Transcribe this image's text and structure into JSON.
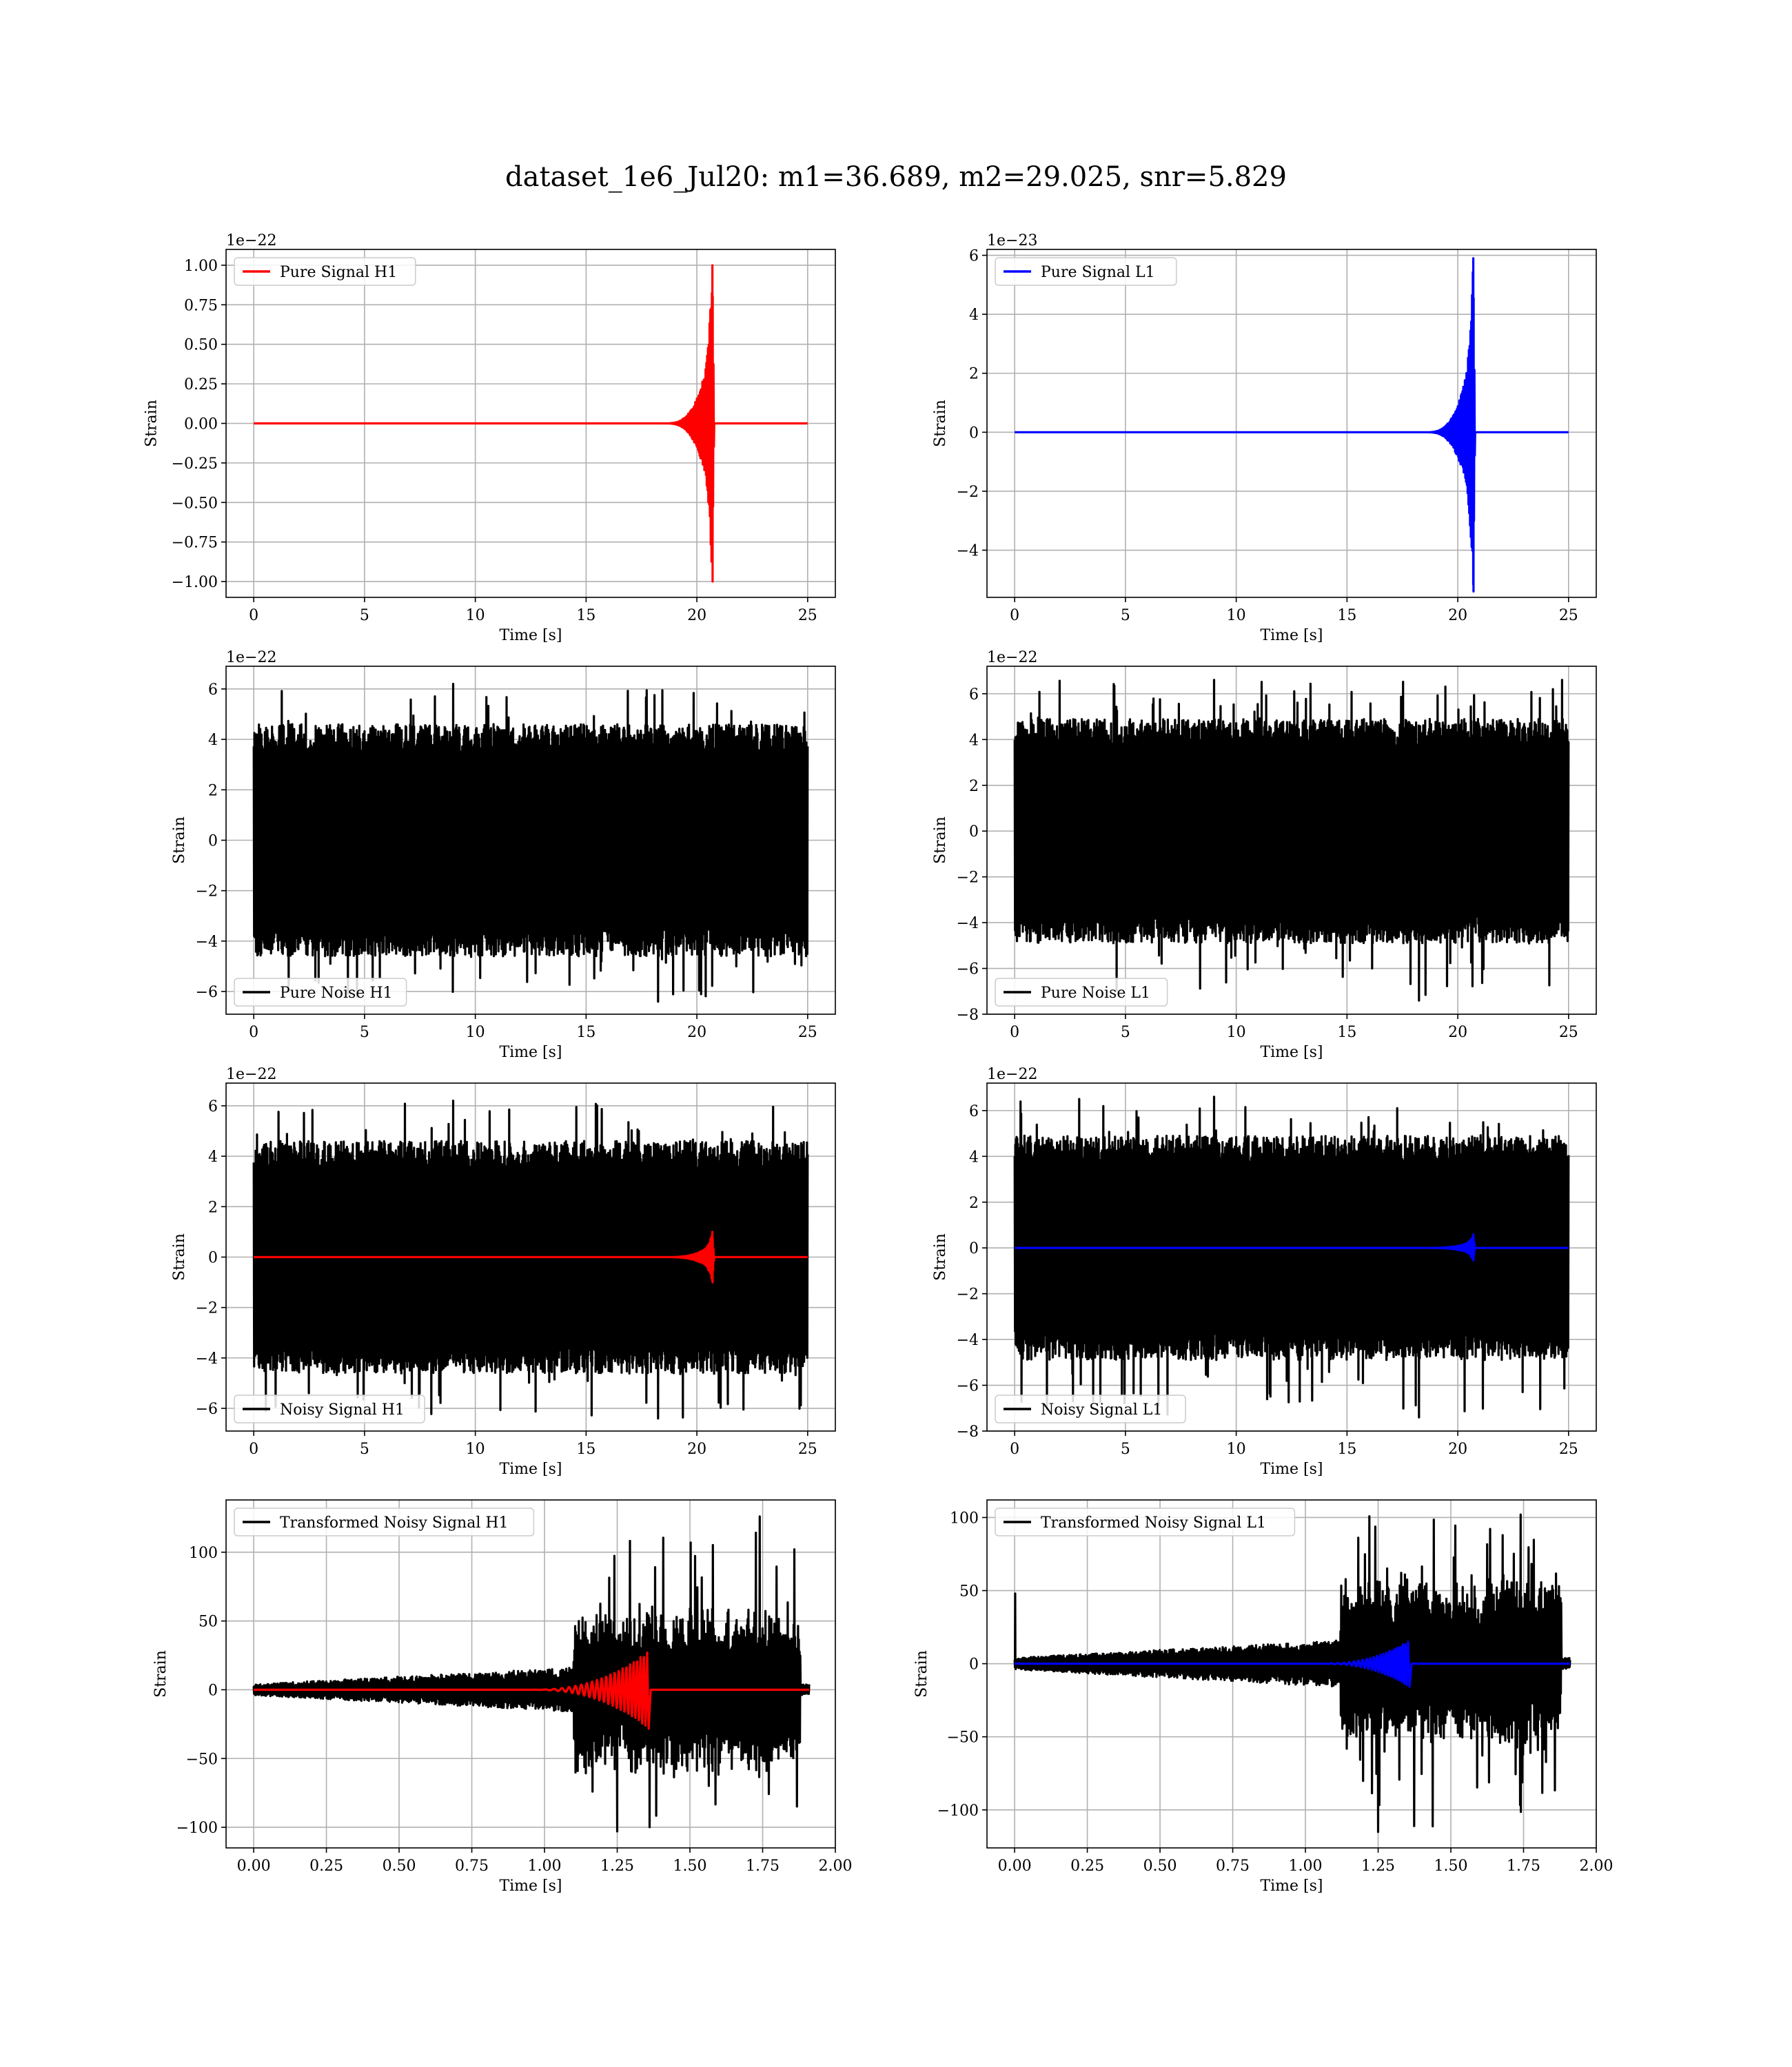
{
  "figure": {
    "title": "dataset_1e6_Jul20: m1=36.689, m2=29.025, snr=5.829"
  },
  "colors": {
    "signal_h1": "#ff0000",
    "signal_l1": "#0000ff",
    "noise": "#000000",
    "grid": "#b0b0b0"
  },
  "chart_data": [
    {
      "id": "pure_h1",
      "type": "line",
      "title": "",
      "xlabel": "Time [s]",
      "ylabel": "Strain",
      "offset_label": "1e−22",
      "xlim": [
        -1.25,
        26.25
      ],
      "ylim": [
        -1.1,
        1.1
      ],
      "xticks": [
        0,
        5,
        10,
        15,
        20,
        25
      ],
      "xtick_labels": [
        "0",
        "5",
        "10",
        "15",
        "20",
        "25"
      ],
      "yticks": [
        -1.0,
        -0.75,
        -0.5,
        -0.25,
        0.0,
        0.25,
        0.5,
        0.75,
        1.0
      ],
      "ytick_labels": [
        "−1.00",
        "−0.75",
        "−0.50",
        "−0.25",
        "0.00",
        "0.25",
        "0.50",
        "0.75",
        "1.00"
      ],
      "grid": true,
      "legend_placement": "upper left",
      "series": [
        {
          "name": "Pure Signal H1",
          "color": "#ff0000",
          "kind": "chirp",
          "x_start": 0,
          "x_end": 25,
          "t_merge": 20.7,
          "peak_pos": 1.0,
          "peak_neg": -1.0,
          "onset": 18.5
        }
      ]
    },
    {
      "id": "pure_l1",
      "type": "line",
      "title": "",
      "xlabel": "Time [s]",
      "ylabel": "Strain",
      "offset_label": "1e−23",
      "xlim": [
        -1.25,
        26.25
      ],
      "ylim": [
        -5.6,
        6.2
      ],
      "xticks": [
        0,
        5,
        10,
        15,
        20,
        25
      ],
      "xtick_labels": [
        "0",
        "5",
        "10",
        "15",
        "20",
        "25"
      ],
      "yticks": [
        -4,
        -2,
        0,
        2,
        4,
        6
      ],
      "ytick_labels": [
        "−4",
        "−2",
        "0",
        "2",
        "4",
        "6"
      ],
      "grid": true,
      "legend_placement": "upper left",
      "series": [
        {
          "name": "Pure Signal L1",
          "color": "#0000ff",
          "kind": "chirp",
          "x_start": 0,
          "x_end": 25,
          "t_merge": 20.7,
          "peak_pos": 5.9,
          "peak_neg": -5.4,
          "onset": 18.5
        }
      ]
    },
    {
      "id": "noise_h1",
      "type": "line",
      "title": "",
      "xlabel": "Time [s]",
      "ylabel": "Strain",
      "offset_label": "1e−22",
      "xlim": [
        -1.25,
        26.25
      ],
      "ylim": [
        -6.9,
        6.9
      ],
      "xticks": [
        0,
        5,
        10,
        15,
        20,
        25
      ],
      "xtick_labels": [
        "0",
        "5",
        "10",
        "15",
        "20",
        "25"
      ],
      "yticks": [
        -6,
        -4,
        -2,
        0,
        2,
        4,
        6
      ],
      "ytick_labels": [
        "−6",
        "−4",
        "−2",
        "0",
        "2",
        "4",
        "6"
      ],
      "grid": true,
      "legend_placement": "lower left",
      "series": [
        {
          "name": "Pure Noise H1",
          "color": "#000000",
          "kind": "noise",
          "x_start": 0,
          "x_end": 25,
          "max": 6.2,
          "min": -6.4
        }
      ]
    },
    {
      "id": "noise_l1",
      "type": "line",
      "title": "",
      "xlabel": "Time [s]",
      "ylabel": "Strain",
      "offset_label": "1e−22",
      "xlim": [
        -1.25,
        26.25
      ],
      "ylim": [
        -8.0,
        7.2
      ],
      "xticks": [
        0,
        5,
        10,
        15,
        20,
        25
      ],
      "xtick_labels": [
        "0",
        "5",
        "10",
        "15",
        "20",
        "25"
      ],
      "yticks": [
        -8,
        -6,
        -4,
        -2,
        0,
        2,
        4,
        6
      ],
      "ytick_labels": [
        "−8",
        "−6",
        "−4",
        "−2",
        "0",
        "2",
        "4",
        "6"
      ],
      "grid": true,
      "legend_placement": "lower left",
      "series": [
        {
          "name": "Pure Noise L1",
          "color": "#000000",
          "kind": "noise",
          "x_start": 0,
          "x_end": 25,
          "max": 6.6,
          "min": -7.4
        }
      ]
    },
    {
      "id": "noisy_h1",
      "type": "line",
      "title": "",
      "xlabel": "Time [s]",
      "ylabel": "Strain",
      "offset_label": "1e−22",
      "xlim": [
        -1.25,
        26.25
      ],
      "ylim": [
        -6.9,
        6.9
      ],
      "xticks": [
        0,
        5,
        10,
        15,
        20,
        25
      ],
      "xtick_labels": [
        "0",
        "5",
        "10",
        "15",
        "20",
        "25"
      ],
      "yticks": [
        -6,
        -4,
        -2,
        0,
        2,
        4,
        6
      ],
      "ytick_labels": [
        "−6",
        "−4",
        "−2",
        "0",
        "2",
        "4",
        "6"
      ],
      "grid": true,
      "legend_placement": "lower left",
      "series": [
        {
          "name": "Noisy Signal H1",
          "color": "#000000",
          "kind": "noise",
          "x_start": 0,
          "x_end": 25,
          "max": 6.2,
          "min": -6.4
        },
        {
          "name": "",
          "color": "#ff0000",
          "kind": "chirp",
          "x_start": 0,
          "x_end": 25,
          "t_merge": 20.7,
          "peak_pos": 1.0,
          "peak_neg": -1.0,
          "onset": 18.5
        }
      ]
    },
    {
      "id": "noisy_l1",
      "type": "line",
      "title": "",
      "xlabel": "Time [s]",
      "ylabel": "Strain",
      "offset_label": "1e−22",
      "xlim": [
        -1.25,
        26.25
      ],
      "ylim": [
        -8.0,
        7.2
      ],
      "xticks": [
        0,
        5,
        10,
        15,
        20,
        25
      ],
      "xtick_labels": [
        "0",
        "5",
        "10",
        "15",
        "20",
        "25"
      ],
      "yticks": [
        -8,
        -6,
        -4,
        -2,
        0,
        2,
        4,
        6
      ],
      "ytick_labels": [
        "−8",
        "−6",
        "−4",
        "−2",
        "0",
        "2",
        "4",
        "6"
      ],
      "grid": true,
      "legend_placement": "lower left",
      "series": [
        {
          "name": "Noisy Signal L1",
          "color": "#000000",
          "kind": "noise",
          "x_start": 0,
          "x_end": 25,
          "max": 6.6,
          "min": -7.4
        },
        {
          "name": "",
          "color": "#0000ff",
          "kind": "chirp",
          "x_start": 0,
          "x_end": 25,
          "t_merge": 20.7,
          "peak_pos": 0.59,
          "peak_neg": -0.54,
          "onset": 18.5
        }
      ]
    },
    {
      "id": "trans_h1",
      "type": "line",
      "title": "",
      "xlabel": "Time [s]",
      "ylabel": "Strain",
      "offset_label": "",
      "xlim": [
        -0.095,
        2.0
      ],
      "ylim": [
        -115,
        138
      ],
      "xticks": [
        0.0,
        0.25,
        0.5,
        0.75,
        1.0,
        1.25,
        1.5,
        1.75,
        2.0
      ],
      "xtick_labels": [
        "0.00",
        "0.25",
        "0.50",
        "0.75",
        "1.00",
        "1.25",
        "1.50",
        "1.75",
        "2.00"
      ],
      "yticks": [
        -100,
        -50,
        0,
        50,
        100
      ],
      "ytick_labels": [
        "−100",
        "−50",
        "0",
        "50",
        "100"
      ],
      "grid": true,
      "legend_placement": "upper left",
      "series": [
        {
          "name": "Transformed Noisy Signal H1",
          "color": "#000000",
          "kind": "tnoise",
          "x_start": 0,
          "x_end": 1.91,
          "max": 126,
          "min": -103,
          "burst_start": 1.1,
          "burst_end": 1.88
        },
        {
          "name": "",
          "color": "#ff0000",
          "kind": "tchirp",
          "x_start": 0,
          "x_end": 1.91,
          "t_merge": 1.35,
          "peak": 27,
          "onset": 0.95
        }
      ]
    },
    {
      "id": "trans_l1",
      "type": "line",
      "title": "",
      "xlabel": "Time [s]",
      "ylabel": "Strain",
      "offset_label": "",
      "xlim": [
        -0.095,
        2.0
      ],
      "ylim": [
        -126,
        112
      ],
      "xticks": [
        0.0,
        0.25,
        0.5,
        0.75,
        1.0,
        1.25,
        1.5,
        1.75,
        2.0
      ],
      "xtick_labels": [
        "0.00",
        "0.25",
        "0.50",
        "0.75",
        "1.00",
        "1.25",
        "1.50",
        "1.75",
        "2.00"
      ],
      "yticks": [
        -100,
        -50,
        0,
        50,
        100
      ],
      "ytick_labels": [
        "−100",
        "−50",
        "0",
        "50",
        "100"
      ],
      "grid": true,
      "legend_placement": "upper left",
      "series": [
        {
          "name": "Transformed Noisy Signal L1",
          "color": "#000000",
          "kind": "tnoise",
          "x_start": 0,
          "x_end": 1.91,
          "max": 102,
          "min": -115,
          "burst_start": 1.12,
          "burst_end": 1.88,
          "spike_at_start": 48
        },
        {
          "name": "",
          "color": "#0000ff",
          "kind": "tchirp",
          "x_start": 0,
          "x_end": 1.91,
          "t_merge": 1.35,
          "peak": 15,
          "onset": 1.05
        }
      ]
    }
  ]
}
